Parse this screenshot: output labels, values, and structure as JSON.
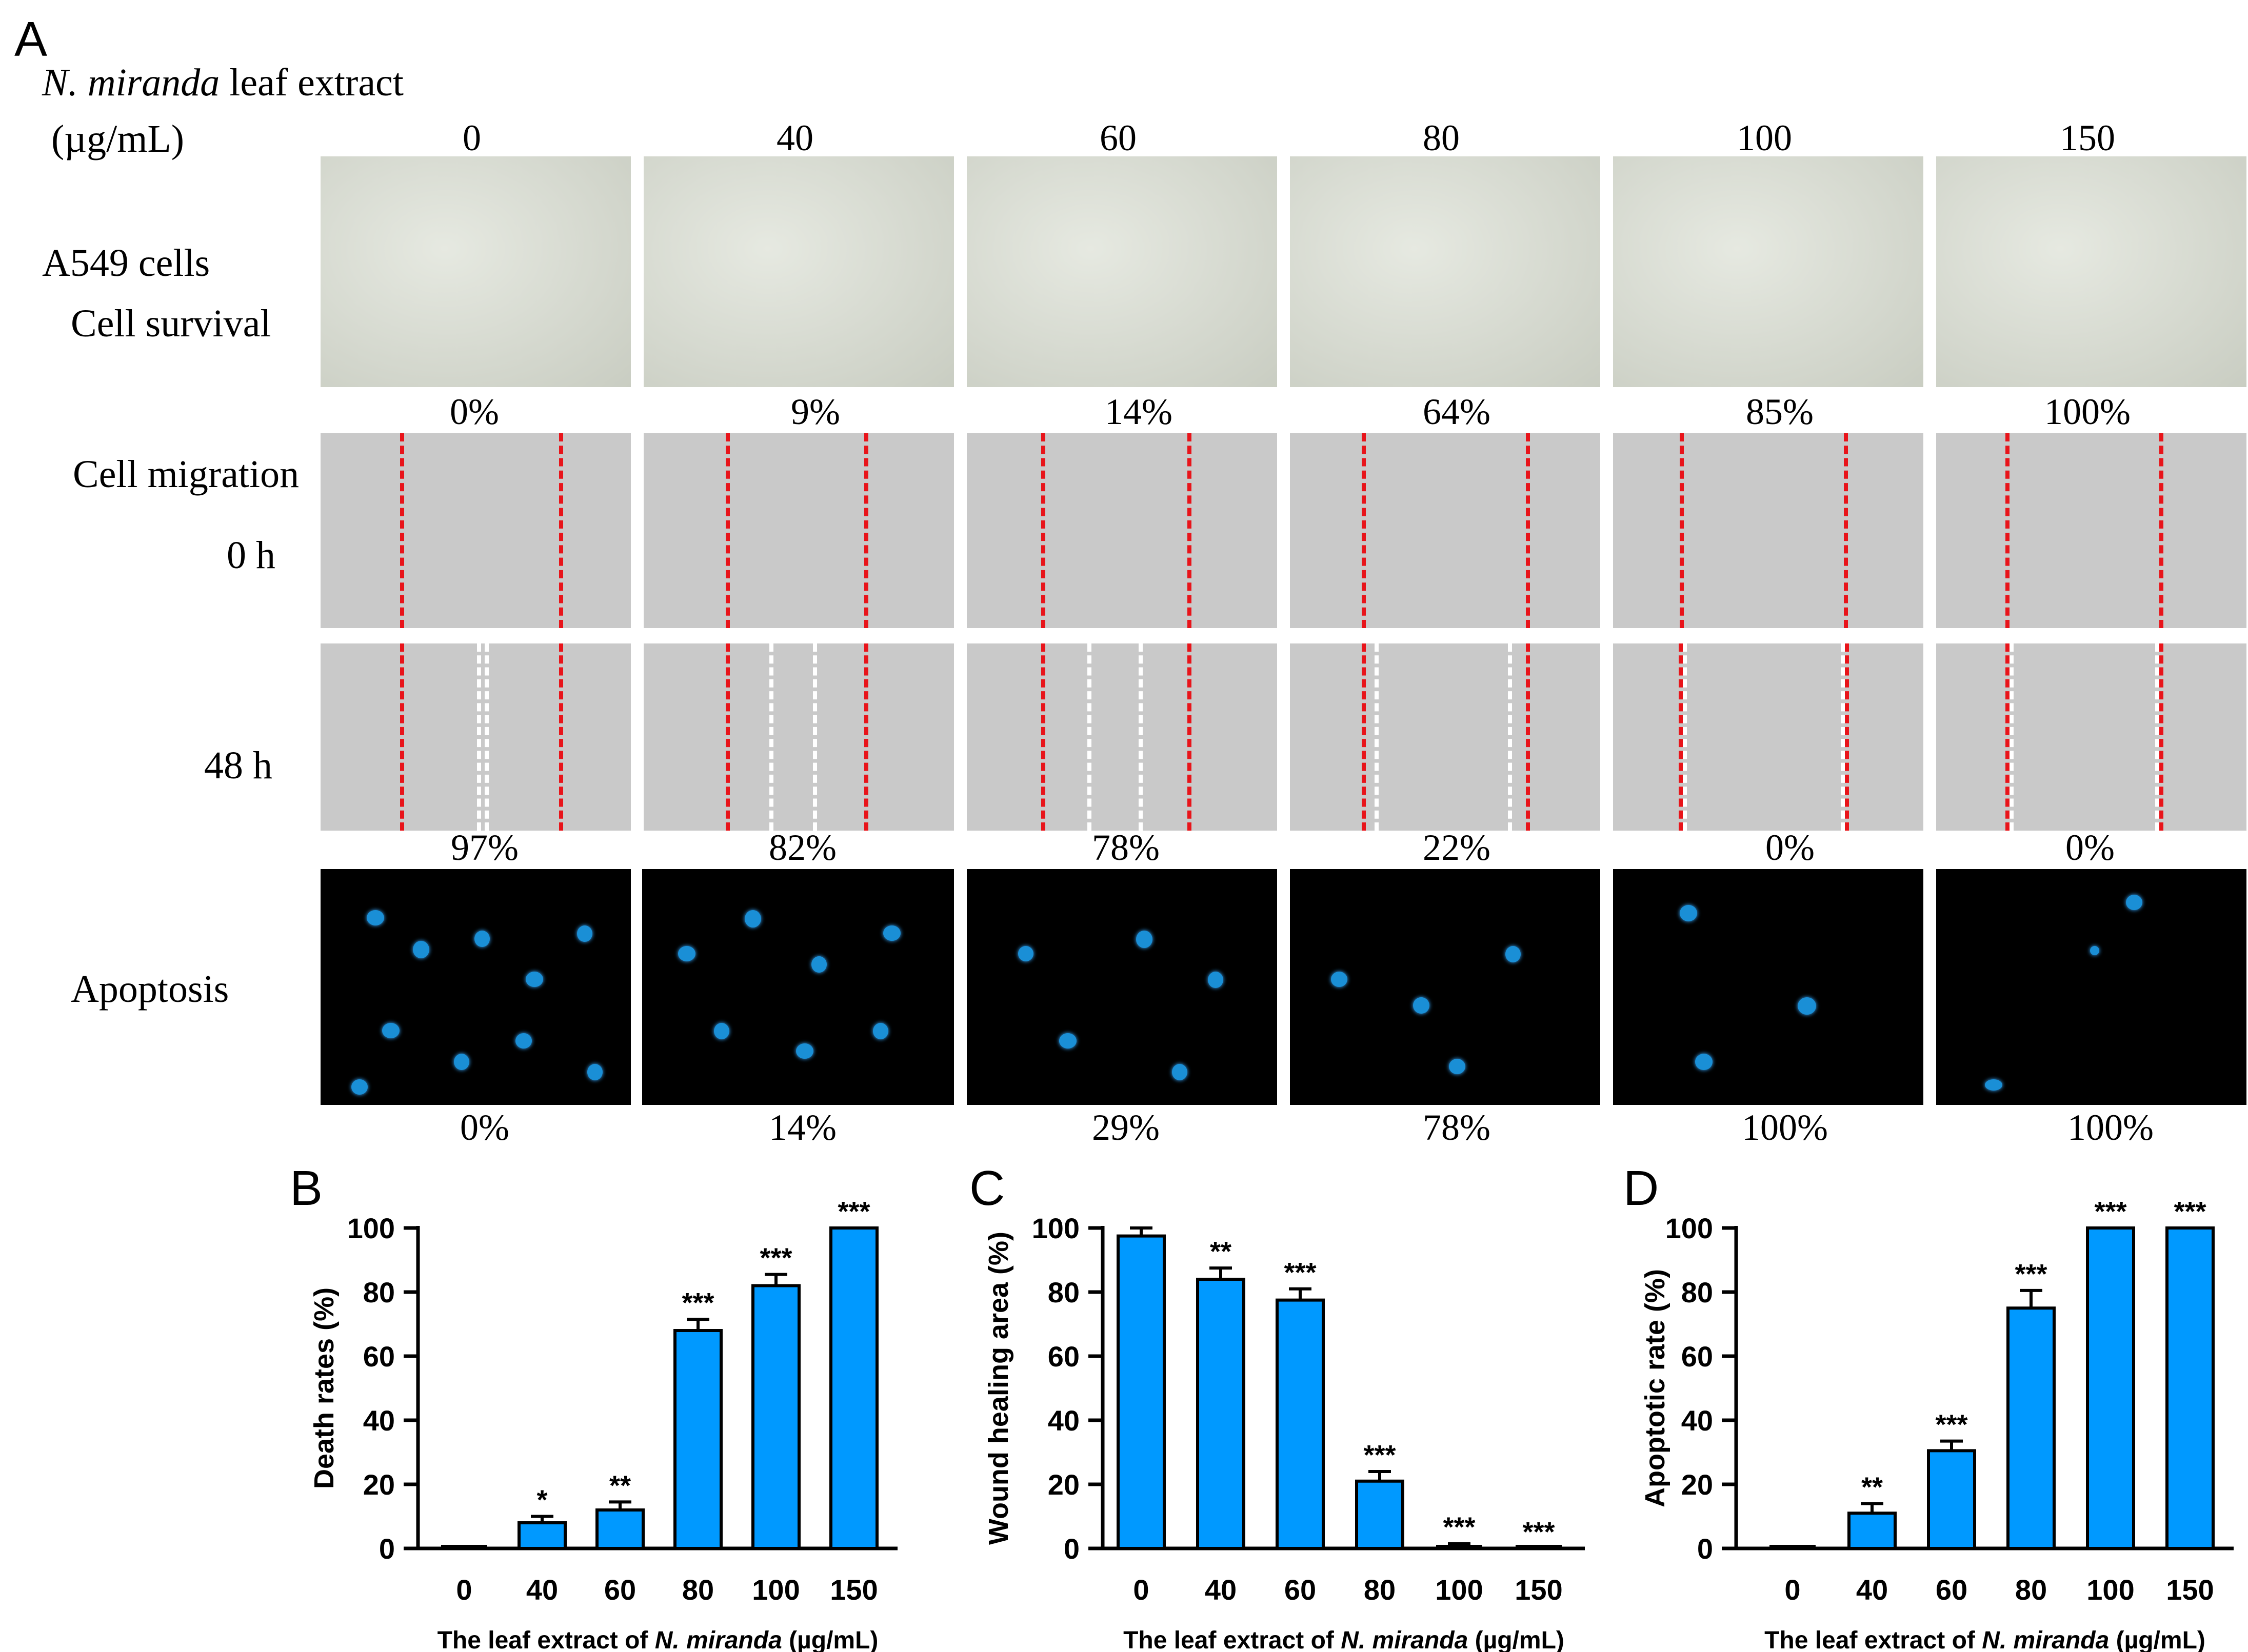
{
  "panel_a": {
    "letter": "A",
    "extract_label_italic": "N. miranda",
    "extract_label_rest": " leaf extract",
    "unit_label": "(µg/mL)",
    "concentrations": [
      "0",
      "40",
      "60",
      "80",
      "100",
      "150"
    ],
    "row_labels": {
      "cells": "A549 cells",
      "survival": "Cell survival",
      "migration": "Cell migration",
      "t0": "0 h",
      "t48": "48 h",
      "apoptosis": "Apoptosis"
    },
    "survival_pcts": [
      "0%",
      "9%",
      "14%",
      "64%",
      "85%",
      "100%"
    ],
    "migration_pcts": [
      "97%",
      "82%",
      "78%",
      "22%",
      "0%",
      "0%"
    ],
    "apoptosis_pcts": [
      "0%",
      "14%",
      "29%",
      "78%",
      "100%",
      "100%"
    ],
    "colors": {
      "dash_red": "#e8141a",
      "dash_white": "#ffffff",
      "nucleus": "#1a8fd6"
    }
  },
  "chart_data": [
    {
      "panel": "B",
      "type": "bar",
      "categories": [
        "0",
        "40",
        "60",
        "80",
        "100",
        "150"
      ],
      "values": [
        0,
        8,
        12,
        68,
        82,
        100
      ],
      "errors": [
        0,
        2,
        2.5,
        3.5,
        3.5,
        0
      ],
      "significance": [
        "",
        "*",
        "**",
        "***",
        "***",
        "***"
      ],
      "ylabel": "Death rates (%)",
      "xlabel_pre": "The leaf extract of ",
      "xlabel_italic": "N. miranda",
      "xlabel_post": " (µg/mL)",
      "ylim": [
        0,
        100
      ],
      "yticks": [
        "0",
        "20",
        "40",
        "60",
        "80",
        "100"
      ],
      "bar_color": "#0099ff"
    },
    {
      "panel": "C",
      "type": "bar",
      "categories": [
        "0",
        "40",
        "60",
        "80",
        "100",
        "150"
      ],
      "values": [
        97.5,
        84,
        77.5,
        21,
        0,
        0
      ],
      "errors": [
        2.5,
        3.5,
        3.5,
        3,
        1.5,
        0
      ],
      "significance": [
        "",
        "**",
        "***",
        "***",
        "***",
        "***"
      ],
      "ylabel": "Wound healing area (%)",
      "xlabel_pre": "The leaf extract of ",
      "xlabel_italic": "N. miranda",
      "xlabel_post": " (µg/mL)",
      "ylim": [
        0,
        100
      ],
      "yticks": [
        "0",
        "20",
        "40",
        "60",
        "80",
        "100"
      ],
      "bar_color": "#0099ff"
    },
    {
      "panel": "D",
      "type": "bar",
      "categories": [
        "0",
        "40",
        "60",
        "80",
        "100",
        "150"
      ],
      "values": [
        0,
        11,
        30.5,
        75,
        100,
        100
      ],
      "errors": [
        0,
        3,
        3,
        5.5,
        0,
        0
      ],
      "significance": [
        "",
        "**",
        "***",
        "***",
        "***",
        "***"
      ],
      "ylabel": "Apoptotic rate (%)",
      "xlabel_pre": "The leaf extract of ",
      "xlabel_italic": "N. miranda",
      "xlabel_post": " (µg/mL)",
      "ylim": [
        0,
        100
      ],
      "yticks": [
        "0",
        "20",
        "40",
        "60",
        "80",
        "100"
      ],
      "bar_color": "#0099ff"
    }
  ]
}
